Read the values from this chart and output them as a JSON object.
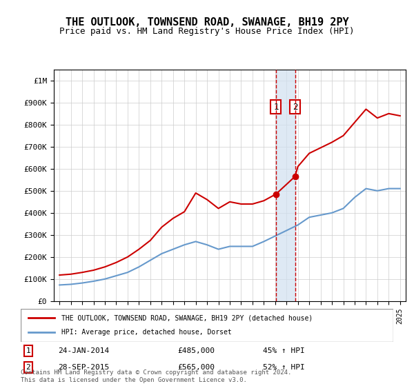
{
  "title": "THE OUTLOOK, TOWNSEND ROAD, SWANAGE, BH19 2PY",
  "subtitle": "Price paid vs. HM Land Registry's House Price Index (HPI)",
  "legend_line1": "THE OUTLOOK, TOWNSEND ROAD, SWANAGE, BH19 2PY (detached house)",
  "legend_line2": "HPI: Average price, detached house, Dorset",
  "footer": "Contains HM Land Registry data © Crown copyright and database right 2024.\nThis data is licensed under the Open Government Licence v3.0.",
  "sale1_date": 2014.07,
  "sale1_price": 485000,
  "sale1_label": "1",
  "sale1_text": "24-JAN-2014",
  "sale1_pct": "45% ↑ HPI",
  "sale2_date": 2015.75,
  "sale2_price": 565000,
  "sale2_label": "2",
  "sale2_text": "28-SEP-2015",
  "sale2_pct": "52% ↑ HPI",
  "red_color": "#cc0000",
  "blue_color": "#6699cc",
  "shade_color": "#d0e0f0",
  "ylim": [
    0,
    1050000
  ],
  "xlim_start": 1995,
  "xlim_end": 2025.5,
  "hpi_years": [
    1995,
    1996,
    1997,
    1998,
    1999,
    2000,
    2001,
    2002,
    2003,
    2004,
    2005,
    2006,
    2007,
    2008,
    2009,
    2010,
    2011,
    2012,
    2013,
    2014,
    2015,
    2016,
    2017,
    2018,
    2019,
    2020,
    2021,
    2022,
    2023,
    2024,
    2025
  ],
  "hpi_values": [
    73000,
    76000,
    82000,
    90000,
    100000,
    115000,
    130000,
    155000,
    185000,
    215000,
    235000,
    255000,
    270000,
    255000,
    235000,
    248000,
    248000,
    248000,
    270000,
    295000,
    320000,
    345000,
    380000,
    390000,
    400000,
    420000,
    470000,
    510000,
    500000,
    510000,
    510000
  ],
  "prop_years": [
    1995,
    1996,
    1997,
    1998,
    1999,
    2000,
    2001,
    2002,
    2003,
    2004,
    2005,
    2006,
    2007,
    2008,
    2009,
    2010,
    2011,
    2012,
    2013,
    2014.07,
    2015.75,
    2016,
    2017,
    2018,
    2019,
    2020,
    2021,
    2022,
    2023,
    2024,
    2025
  ],
  "prop_values": [
    118000,
    122000,
    130000,
    140000,
    155000,
    175000,
    200000,
    235000,
    275000,
    335000,
    375000,
    405000,
    490000,
    460000,
    420000,
    450000,
    440000,
    440000,
    455000,
    485000,
    565000,
    610000,
    670000,
    695000,
    720000,
    750000,
    810000,
    870000,
    830000,
    850000,
    840000
  ]
}
